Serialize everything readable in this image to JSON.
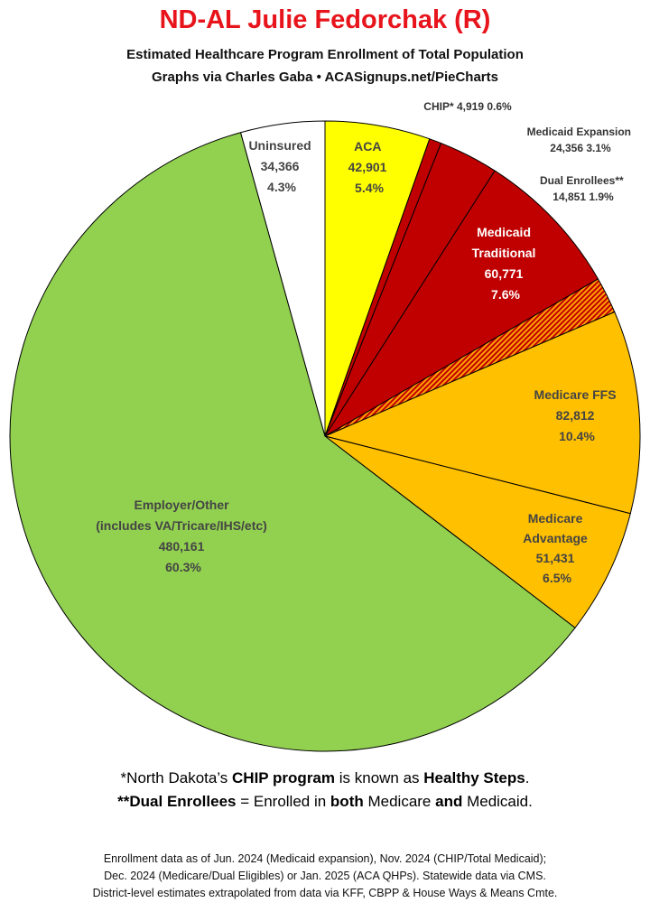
{
  "title": "ND-AL Julie Fedorchak (R)",
  "subtitle1": "Estimated Healthcare Program Enrollment of Total Population",
  "subtitle2": "Graphs via Charles Gaba  •  ACASignups.net/PieCharts",
  "chart_data": {
    "type": "pie",
    "start": "12 o'clock, clockwise",
    "slices": [
      {
        "name": "ACA",
        "value": 42901,
        "percent": "5.4%",
        "value_label": "42,901",
        "color": "#ffff00",
        "label_color": "#444444"
      },
      {
        "name": "CHIP*",
        "value": 4919,
        "percent": "0.6%",
        "value_label": "4,919",
        "color": "#c00000",
        "label_color": "#333333"
      },
      {
        "name": "Medicaid Expansion",
        "value": 24356,
        "percent": "3.1%",
        "value_label": "24,356",
        "color": "#c00000",
        "label_color": "#333333"
      },
      {
        "name": "Medicaid Traditional",
        "value": 60771,
        "percent": "7.6%",
        "value_label": "60,771",
        "color": "#c00000",
        "label_color": "#ffffff"
      },
      {
        "name": "Dual Enrollees**",
        "value": 14851,
        "percent": "1.9%",
        "value_label": "14,851",
        "color": "#e06000",
        "pattern": "hatched",
        "label_color": "#333333"
      },
      {
        "name": "Medicare FFS",
        "value": 82812,
        "percent": "10.4%",
        "value_label": "82,812",
        "color": "#ffc000",
        "label_color": "#444444"
      },
      {
        "name": "Medicare Advantage",
        "value": 51431,
        "percent": "6.5%",
        "value_label": "51,431",
        "color": "#ffc000",
        "label_color": "#444444"
      },
      {
        "name": "Employer/Other (includes VA/Tricare/IHS/etc)",
        "value": 480161,
        "percent": "60.3%",
        "value_label": "480,161",
        "color": "#92d050",
        "label_color": "#444444"
      },
      {
        "name": "Uninsured",
        "value": 34366,
        "percent": "4.3%",
        "value_label": "34,366",
        "color": "#ffffff",
        "label_color": "#444444"
      }
    ]
  },
  "labels": {
    "aca": [
      "ACA",
      "42,901",
      "5.4%"
    ],
    "chip": "CHIP* 4,919 0.6%",
    "exp": [
      "Medicaid Expansion",
      "24,356 3.1%"
    ],
    "dual": [
      "Dual Enrollees**",
      "14,851 1.9%"
    ],
    "trad": [
      "Medicaid",
      "Traditional",
      "60,771",
      "7.6%"
    ],
    "ffs": [
      "Medicare FFS",
      "82,812",
      "10.4%"
    ],
    "adv": [
      "Medicare",
      "Advantage",
      "51,431",
      "6.5%"
    ],
    "emp": [
      "Employer/Other",
      "(includes VA/Tricare/IHS/etc)",
      "480,161",
      "60.3%"
    ],
    "unins": [
      "Uninsured",
      "34,366",
      "4.3%"
    ]
  },
  "notes": {
    "n1_a": "*North Dakota’s ",
    "n1_b": "CHIP program",
    "n1_c": " is known as ",
    "n1_d": "Healthy Steps",
    "n1_e": ".",
    "n2_a": "**Dual Enrollees",
    "n2_b": " = Enrolled in ",
    "n2_c": "both",
    "n2_d": " Medicare ",
    "n2_e": "and",
    "n2_f": " Medicaid."
  },
  "source": {
    "line1": "Enrollment data as of Jun. 2024 (Medicaid expansion), Nov. 2024 (CHIP/Total Medicaid);",
    "line2": "Dec. 2024 (Medicare/Dual Eligibles) or Jan. 2025 (ACA QHPs). Statewide data via CMS.",
    "line3": "District-level estimates extrapolated from data via KFF, CBPP & House Ways & Means Cmte."
  }
}
